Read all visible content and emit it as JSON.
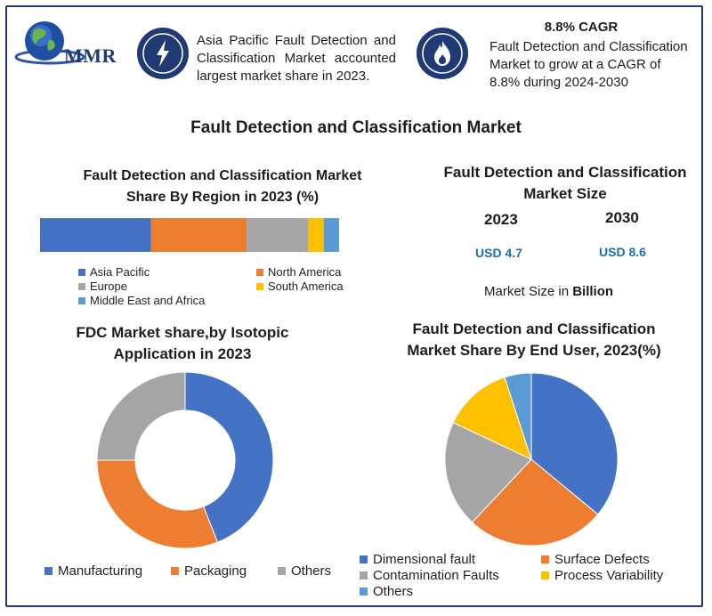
{
  "logo": {
    "text": "MMR"
  },
  "header": {
    "callout_left": "Asia Pacific Fault Detection and Classification Market accounted largest market share in 2023.",
    "cagr_title": "8.8% CAGR",
    "cagr_text": "Fault Detection and Classification Market to grow at a CAGR of 8.8% during 2024-2030",
    "left_icon": "lightning-icon",
    "right_icon": "flame-icon"
  },
  "main_title": "Fault Detection and Classification Market",
  "colors": {
    "blue": "#4472c4",
    "orange": "#ed7d31",
    "gray": "#a5a5a5",
    "yellow": "#ffc000",
    "lightblue": "#5b9bd5",
    "navy": "#1f3a75"
  },
  "market_size": {
    "title_line1": "Fault Detection and Classification",
    "title_line2": "Market Size",
    "year1": "2023",
    "year2": "2030",
    "value1": "USD 4.7",
    "value2": "USD 8.6",
    "note_prefix": "Market Size in ",
    "note_bold": "Billion"
  },
  "chart_data": [
    {
      "type": "bar",
      "orientation": "horizontal-stacked",
      "title": "Fault Detection and Classification  Market Share By Region in 2023 (%)",
      "title_line1": "Fault Detection and Classification  Market",
      "title_line2": "Share By Region in 2023 (%)",
      "series": [
        {
          "name": "Asia Pacific",
          "value": 36,
          "color": "#4472c4"
        },
        {
          "name": "North America",
          "value": 31,
          "color": "#ed7d31"
        },
        {
          "name": "Europe",
          "value": 20,
          "color": "#a5a5a5"
        },
        {
          "name": "South America",
          "value": 5,
          "color": "#ffc000"
        },
        {
          "name": "Middle East and Africa",
          "value": 5,
          "color": "#5b9bd5"
        }
      ]
    },
    {
      "type": "pie",
      "variant": "donut",
      "title": "FDC Market share,by Isotopic Application  in 2023",
      "title_line1": "FDC Market share,by Isotopic",
      "title_line2": "Application  in 2023",
      "series": [
        {
          "name": "Manufacturing",
          "value": 44,
          "color": "#4472c4"
        },
        {
          "name": "Packaging",
          "value": 31,
          "color": "#ed7d31"
        },
        {
          "name": "Others",
          "value": 25,
          "color": "#a5a5a5"
        }
      ]
    },
    {
      "type": "pie",
      "title": "Fault Detection and Classification Market Share By End User, 2023(%)",
      "title_line1": "Fault Detection and Classification",
      "title_line2": "Market Share By End User, 2023(%)",
      "series": [
        {
          "name": "Dimensional fault",
          "value": 36,
          "color": "#4472c4"
        },
        {
          "name": "Surface Defects",
          "value": 26,
          "color": "#ed7d31"
        },
        {
          "name": "Contamination Faults",
          "value": 20,
          "color": "#a5a5a5"
        },
        {
          "name": "Process Variability",
          "value": 13,
          "color": "#ffc000"
        },
        {
          "name": "Others",
          "value": 5,
          "color": "#5b9bd5"
        }
      ]
    }
  ]
}
